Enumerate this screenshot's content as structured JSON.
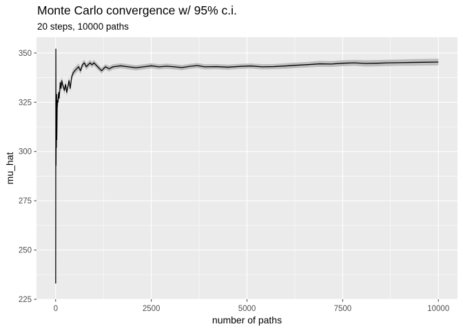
{
  "chart_data": {
    "type": "line",
    "title": "Monte Carlo convergence w/ 95% c.i.",
    "subtitle": "20 steps, 10000 paths",
    "xlabel": "number of paths",
    "ylabel": "mu_hat",
    "xlim": [
      -500,
      10500
    ],
    "ylim": [
      225,
      358
    ],
    "xticks": [
      0,
      2500,
      5000,
      7500,
      10000
    ],
    "xtick_labels": [
      "0",
      "2500",
      "5000",
      "7500",
      "10000"
    ],
    "yticks": [
      225,
      250,
      275,
      300,
      325,
      350
    ],
    "ytick_labels": [
      "225",
      "250",
      "275",
      "300",
      "325",
      "350"
    ],
    "grid": true,
    "colors": {
      "panel": "#ebebeb",
      "grid": "#ffffff",
      "line": "#000000",
      "ribbon": "#bdbdbd"
    },
    "series": [
      {
        "x": [
          1,
          5,
          10,
          15,
          20,
          25,
          30,
          40,
          50,
          60,
          70,
          80,
          90,
          100,
          120,
          140,
          160,
          180,
          200,
          230,
          260,
          290,
          320,
          350,
          380,
          420,
          460,
          500,
          550,
          600,
          650,
          700,
          750,
          800,
          850,
          900,
          950,
          1000,
          1100,
          1200,
          1300,
          1400,
          1500,
          1700,
          1900,
          2100,
          2300,
          2500,
          2700,
          2900,
          3100,
          3300,
          3500,
          3700,
          3900,
          4200,
          4500,
          4800,
          5100,
          5400,
          5700,
          6000,
          6300,
          6600,
          6900,
          7200,
          7500,
          7800,
          8100,
          8400,
          8700,
          9000,
          9300,
          9600,
          10000
        ],
        "y": [
          233,
          352,
          293,
          318,
          302,
          329,
          306,
          322,
          326,
          325,
          328,
          330,
          327,
          329,
          335,
          332,
          336,
          334,
          333,
          331,
          334,
          330,
          333,
          336,
          332,
          338,
          340,
          341,
          342,
          343,
          341,
          344,
          345,
          343,
          344,
          345,
          344,
          345,
          343,
          341,
          343,
          342,
          343,
          343.5,
          343,
          342.5,
          343,
          343.5,
          343,
          343.3,
          343,
          342.6,
          343.2,
          343.6,
          343,
          343.1,
          342.8,
          343.2,
          343.4,
          343,
          343.1,
          343.4,
          343.8,
          344.1,
          344.5,
          344.4,
          344.8,
          345,
          344.7,
          344.8,
          345,
          345.1,
          345.2,
          345.3,
          345.4
        ],
        "ci_halfwidth": [
          0,
          0,
          0,
          4,
          3.5,
          3,
          3,
          3,
          2.8,
          2.6,
          2.5,
          2.4,
          2.3,
          2.2,
          2.2,
          2.1,
          2.1,
          2,
          2,
          2,
          2,
          2,
          1.9,
          1.9,
          1.9,
          1.8,
          1.8,
          1.8,
          1.8,
          1.7,
          1.7,
          1.6,
          1.6,
          1.6,
          1.6,
          1.5,
          1.5,
          1.5,
          1.5,
          1.4,
          1.4,
          1.4,
          1.3,
          1.3,
          1.3,
          1.3,
          1.3,
          1.3,
          1.3,
          1.3,
          1.3,
          1.3,
          1.3,
          1.3,
          1.3,
          1.3,
          1.3,
          1.3,
          1.3,
          1.3,
          1.3,
          1.4,
          1.4,
          1.4,
          1.5,
          1.5,
          1.5,
          1.5,
          1.6,
          1.6,
          1.6,
          1.6,
          1.7,
          1.7,
          1.7
        ]
      }
    ]
  }
}
